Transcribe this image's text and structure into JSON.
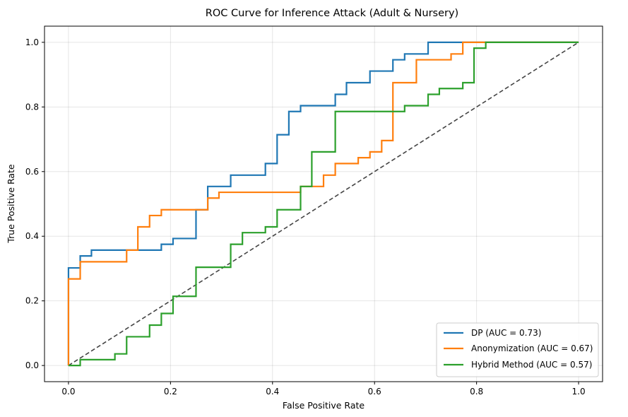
{
  "chart_data": {
    "type": "line",
    "title": "ROC Curve for Inference Attack (Adult & Nursery)",
    "xlabel": "False Positive Rate",
    "ylabel": "True Positive Rate",
    "xlim": [
      -0.047,
      1.047
    ],
    "ylim": [
      -0.05,
      1.05
    ],
    "xticks": [
      "0.0",
      "0.2",
      "0.4",
      "0.6",
      "0.8",
      "1.0"
    ],
    "yticks": [
      "0.0",
      "0.2",
      "0.4",
      "0.6",
      "0.8",
      "1.0"
    ],
    "grid": true,
    "legend_position": "lower-right",
    "series": [
      {
        "name": "DP (AUC = 0.73)",
        "color": "#1f77b4",
        "x": [
          0,
          0,
          0.023,
          0.023,
          0.045,
          0.045,
          0.182,
          0.182,
          0.205,
          0.205,
          0.25,
          0.25,
          0.273,
          0.273,
          0.318,
          0.318,
          0.386,
          0.386,
          0.409,
          0.409,
          0.432,
          0.432,
          0.455,
          0.455,
          0.523,
          0.523,
          0.545,
          0.545,
          0.591,
          0.591,
          0.636,
          0.636,
          0.659,
          0.659,
          0.705,
          0.705,
          1.0
        ],
        "y": [
          0,
          0.302,
          0.302,
          0.339,
          0.339,
          0.357,
          0.357,
          0.375,
          0.375,
          0.393,
          0.393,
          0.482,
          0.482,
          0.554,
          0.554,
          0.589,
          0.589,
          0.625,
          0.625,
          0.714,
          0.714,
          0.786,
          0.786,
          0.804,
          0.804,
          0.839,
          0.839,
          0.875,
          0.875,
          0.911,
          0.911,
          0.946,
          0.946,
          0.964,
          0.964,
          1.0,
          1.0
        ]
      },
      {
        "name": "Anonymization (AUC = 0.67)",
        "color": "#ff7f0e",
        "x": [
          0,
          0,
          0.023,
          0.023,
          0.114,
          0.114,
          0.136,
          0.136,
          0.159,
          0.159,
          0.182,
          0.182,
          0.273,
          0.273,
          0.295,
          0.295,
          0.455,
          0.455,
          0.5,
          0.5,
          0.523,
          0.523,
          0.568,
          0.568,
          0.591,
          0.591,
          0.614,
          0.614,
          0.636,
          0.636,
          0.682,
          0.682,
          0.75,
          0.75,
          0.773,
          0.773,
          1.0
        ],
        "y": [
          0,
          0.268,
          0.268,
          0.321,
          0.321,
          0.357,
          0.357,
          0.429,
          0.429,
          0.464,
          0.464,
          0.482,
          0.482,
          0.518,
          0.518,
          0.536,
          0.536,
          0.554,
          0.554,
          0.589,
          0.589,
          0.625,
          0.625,
          0.643,
          0.643,
          0.661,
          0.661,
          0.696,
          0.696,
          0.875,
          0.875,
          0.946,
          0.946,
          0.964,
          0.964,
          1.0,
          1.0
        ]
      },
      {
        "name": "Hybrid Method (AUC = 0.57)",
        "color": "#2ca02c",
        "x": [
          0,
          0,
          0.023,
          0.023,
          0.091,
          0.091,
          0.114,
          0.114,
          0.159,
          0.159,
          0.182,
          0.182,
          0.205,
          0.205,
          0.25,
          0.25,
          0.318,
          0.318,
          0.341,
          0.341,
          0.386,
          0.386,
          0.409,
          0.409,
          0.455,
          0.455,
          0.477,
          0.477,
          0.523,
          0.523,
          0.636,
          0.636,
          0.659,
          0.659,
          0.705,
          0.705,
          0.727,
          0.727,
          0.773,
          0.773,
          0.795,
          0.795,
          0.818,
          0.818,
          1.0
        ],
        "y": [
          0,
          0,
          0,
          0.018,
          0.018,
          0.036,
          0.036,
          0.089,
          0.089,
          0.125,
          0.125,
          0.161,
          0.161,
          0.214,
          0.214,
          0.304,
          0.304,
          0.375,
          0.375,
          0.411,
          0.411,
          0.429,
          0.429,
          0.482,
          0.482,
          0.554,
          0.554,
          0.661,
          0.661,
          0.786,
          0.786,
          0.786,
          0.786,
          0.804,
          0.804,
          0.839,
          0.839,
          0.857,
          0.857,
          0.875,
          0.875,
          0.982,
          0.982,
          1.0,
          1.0
        ]
      },
      {
        "color": "#444444",
        "dashed": true,
        "x": [
          0,
          1
        ],
        "y": [
          0,
          1
        ]
      }
    ]
  }
}
